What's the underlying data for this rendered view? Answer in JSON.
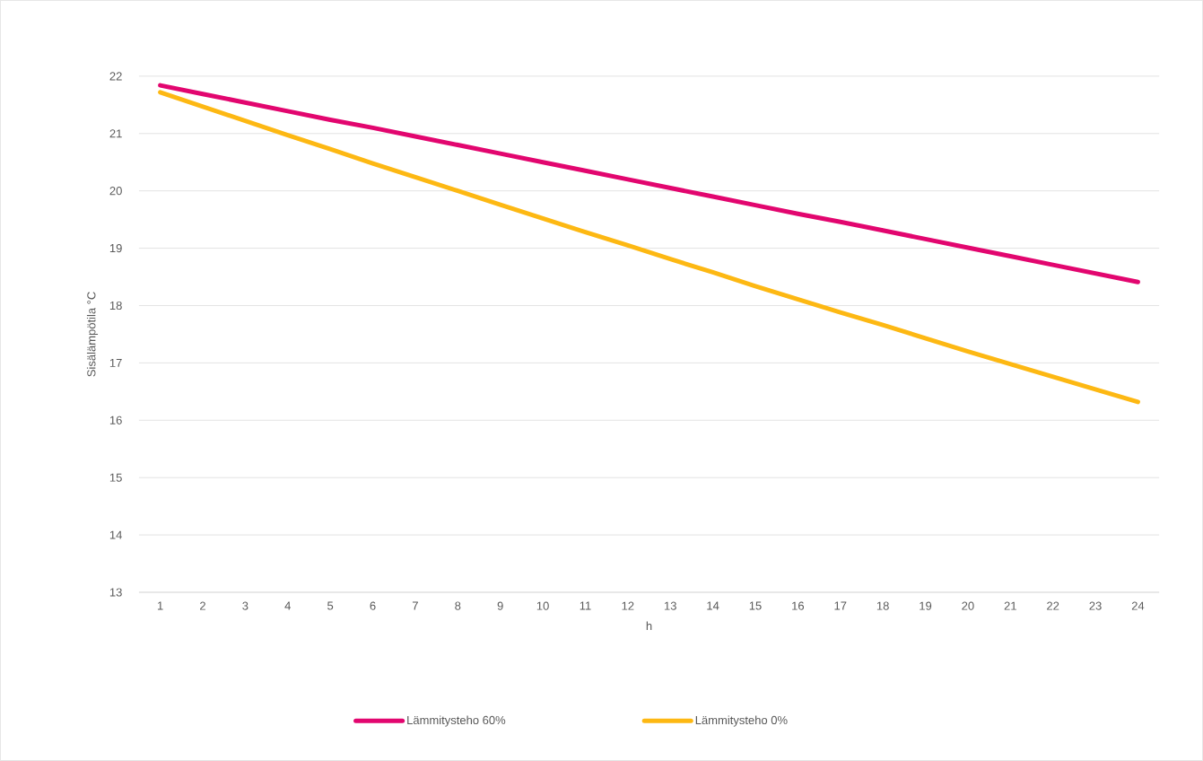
{
  "chart_data": {
    "type": "line",
    "xlabel": "h",
    "ylabel": "Sisälämpötila °C",
    "categories": [
      "1",
      "2",
      "3",
      "4",
      "5",
      "6",
      "7",
      "8",
      "9",
      "10",
      "11",
      "12",
      "13",
      "14",
      "15",
      "16",
      "17",
      "18",
      "19",
      "20",
      "21",
      "22",
      "23",
      "24"
    ],
    "series": [
      {
        "name": "Lämmitysteho 60%",
        "color": "#e2066f",
        "values": [
          21.84,
          21.69,
          21.54,
          21.39,
          21.24,
          21.1,
          20.95,
          20.8,
          20.65,
          20.5,
          20.35,
          20.2,
          20.05,
          19.9,
          19.75,
          19.6,
          19.46,
          19.31,
          19.16,
          19.01,
          18.86,
          18.71,
          18.56,
          18.41
        ]
      },
      {
        "name": "Lämmitysteho 0%",
        "color": "#fdb813",
        "values": [
          21.72,
          21.47,
          21.22,
          20.97,
          20.73,
          20.48,
          20.24,
          20.0,
          19.76,
          19.52,
          19.28,
          19.05,
          18.81,
          18.58,
          18.34,
          18.11,
          17.88,
          17.66,
          17.43,
          17.2,
          16.98,
          16.76,
          16.54,
          16.32
        ]
      }
    ],
    "ylim": [
      13,
      22
    ],
    "yticks": [
      13,
      14,
      15,
      16,
      17,
      18,
      19,
      20,
      21,
      22
    ],
    "grid": "y",
    "legend": "bottom",
    "line_style": "solid"
  }
}
